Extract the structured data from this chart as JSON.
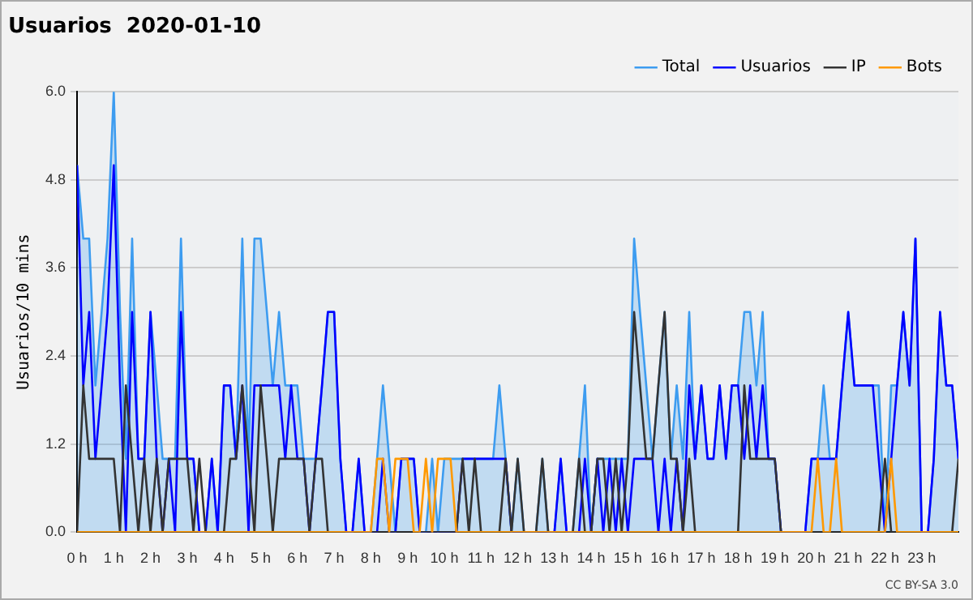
{
  "chart_data": {
    "type": "line",
    "title": "Usuarios  2020-01-10",
    "ylabel": "Usuarios/10 mins",
    "x": [
      0,
      0.17,
      0.33,
      0.5,
      0.67,
      0.83,
      1,
      1.17,
      1.33,
      1.5,
      1.67,
      1.83,
      2,
      2.17,
      2.33,
      2.5,
      2.67,
      2.83,
      3,
      3.17,
      3.33,
      3.5,
      3.67,
      3.83,
      4,
      4.17,
      4.33,
      4.5,
      4.67,
      4.83,
      5,
      5.17,
      5.33,
      5.5,
      5.67,
      5.83,
      6,
      6.17,
      6.33,
      6.5,
      6.67,
      6.83,
      7,
      7.17,
      7.33,
      7.5,
      7.67,
      7.83,
      8,
      8.17,
      8.33,
      8.5,
      8.67,
      8.83,
      9,
      9.17,
      9.33,
      9.5,
      9.67,
      9.83,
      10,
      10.17,
      10.33,
      10.5,
      10.67,
      10.83,
      11,
      11.17,
      11.33,
      11.5,
      11.67,
      11.83,
      12,
      12.17,
      12.33,
      12.5,
      12.67,
      12.83,
      13,
      13.17,
      13.33,
      13.5,
      13.67,
      13.83,
      14,
      14.17,
      14.33,
      14.5,
      14.67,
      14.83,
      15,
      15.17,
      15.33,
      15.5,
      15.67,
      15.83,
      16,
      16.17,
      16.33,
      16.5,
      16.67,
      16.83,
      17,
      17.17,
      17.33,
      17.5,
      17.67,
      17.83,
      18,
      18.17,
      18.33,
      18.5,
      18.67,
      18.83,
      19,
      19.17,
      19.33,
      19.5,
      19.67,
      19.83,
      20,
      20.17,
      20.33,
      20.5,
      20.67,
      20.83,
      21,
      21.17,
      21.33,
      21.5,
      21.67,
      21.83,
      22,
      22.17,
      22.33,
      22.5,
      22.67,
      22.83,
      23,
      23.17,
      23.33,
      23.5,
      23.67,
      23.83,
      24
    ],
    "series": [
      {
        "name": "Total",
        "type": "area",
        "color": "#3d9cf0",
        "values": [
          5,
          4,
          4,
          2,
          3,
          4,
          6,
          3,
          1,
          4,
          1,
          1,
          3,
          2,
          1,
          1,
          1,
          4,
          1,
          1,
          0,
          0,
          1,
          0,
          2,
          2,
          1,
          4,
          1,
          4,
          4,
          3,
          2,
          3,
          2,
          2,
          2,
          1,
          1,
          1,
          2,
          3,
          3,
          1,
          0,
          0,
          1,
          0,
          0,
          1,
          2,
          1,
          0,
          1,
          1,
          1,
          0,
          0,
          1,
          0,
          1,
          1,
          1,
          1,
          1,
          1,
          1,
          1,
          1,
          2,
          1,
          0,
          1,
          0,
          0,
          0,
          1,
          0,
          0,
          1,
          0,
          0,
          1,
          2,
          0,
          1,
          1,
          1,
          1,
          1,
          1,
          4,
          3,
          2,
          1,
          2,
          3,
          1,
          2,
          1,
          3,
          1,
          2,
          1,
          1,
          2,
          1,
          2,
          2,
          3,
          3,
          2,
          3,
          1,
          1,
          0,
          0,
          0,
          0,
          0,
          1,
          1,
          2,
          1,
          1,
          2,
          3,
          2,
          2,
          2,
          2,
          2,
          0,
          2,
          2,
          3,
          2,
          4,
          0,
          0,
          1,
          3,
          2,
          2,
          1
        ]
      },
      {
        "name": "Usuarios",
        "color": "#0000ff",
        "values": [
          5,
          2,
          3,
          1,
          2,
          3,
          5,
          2,
          0,
          3,
          1,
          1,
          3,
          1,
          0,
          1,
          0,
          3,
          1,
          1,
          0,
          0,
          1,
          0,
          2,
          2,
          1,
          2,
          0,
          2,
          2,
          2,
          2,
          2,
          1,
          2,
          1,
          1,
          0,
          1,
          2,
          3,
          3,
          1,
          0,
          0,
          1,
          0,
          0,
          0,
          1,
          0,
          0,
          1,
          1,
          1,
          0,
          0,
          0,
          0,
          0,
          0,
          0,
          1,
          1,
          1,
          1,
          1,
          1,
          1,
          1,
          0,
          0,
          0,
          0,
          0,
          0,
          0,
          0,
          1,
          0,
          0,
          0,
          1,
          0,
          1,
          0,
          1,
          0,
          1,
          0,
          1,
          1,
          1,
          1,
          0,
          1,
          0,
          1,
          0,
          2,
          1,
          2,
          1,
          1,
          2,
          1,
          2,
          2,
          1,
          2,
          1,
          2,
          1,
          1,
          0,
          0,
          0,
          0,
          0,
          1,
          1,
          1,
          1,
          1,
          2,
          3,
          2,
          2,
          2,
          2,
          1,
          0,
          1,
          2,
          3,
          2,
          4,
          0,
          0,
          1,
          3,
          2,
          2,
          1
        ]
      },
      {
        "name": "IP",
        "color": "#333333",
        "values": [
          0,
          2,
          1,
          1,
          1,
          1,
          1,
          0,
          2,
          1,
          0,
          1,
          0,
          1,
          0,
          1,
          1,
          1,
          1,
          0,
          1,
          0,
          0,
          0,
          0,
          1,
          1,
          2,
          1,
          0,
          2,
          1,
          0,
          1,
          1,
          1,
          1,
          1,
          0,
          1,
          1,
          0,
          0,
          0,
          0,
          0,
          0,
          0,
          0,
          0,
          0,
          0,
          0,
          0,
          0,
          0,
          0,
          0,
          0,
          0,
          0,
          0,
          0,
          1,
          0,
          1,
          0,
          0,
          0,
          0,
          1,
          0,
          1,
          0,
          0,
          0,
          1,
          0,
          0,
          0,
          0,
          0,
          1,
          0,
          0,
          1,
          1,
          0,
          1,
          0,
          1,
          3,
          2,
          1,
          1,
          2,
          3,
          1,
          1,
          0,
          1,
          0,
          0,
          0,
          0,
          0,
          0,
          0,
          0,
          2,
          1,
          1,
          1,
          1,
          1,
          0,
          0,
          0,
          0,
          0,
          0,
          0,
          0,
          0,
          0,
          0,
          0,
          0,
          0,
          0,
          0,
          0,
          1,
          0,
          0,
          0,
          0,
          0,
          0,
          0,
          0,
          0,
          0,
          0,
          1
        ]
      },
      {
        "name": "Bots",
        "color": "#ff9900",
        "values": [
          0,
          0,
          0,
          0,
          0,
          0,
          0,
          0,
          0,
          0,
          0,
          0,
          0,
          0,
          0,
          0,
          0,
          0,
          0,
          0,
          0,
          0,
          0,
          0,
          0,
          0,
          0,
          0,
          0,
          0,
          0,
          0,
          0,
          0,
          0,
          0,
          0,
          0,
          0,
          0,
          0,
          0,
          0,
          0,
          0,
          0,
          0,
          0,
          0,
          1,
          1,
          0,
          1,
          1,
          1,
          0,
          0,
          1,
          0,
          1,
          1,
          1,
          0,
          0,
          0,
          0,
          0,
          0,
          0,
          0,
          0,
          0,
          0,
          0,
          0,
          0,
          0,
          0,
          0,
          0,
          0,
          0,
          0,
          0,
          0,
          0,
          0,
          0,
          0,
          0,
          0,
          0,
          0,
          0,
          0,
          0,
          0,
          0,
          0,
          0,
          0,
          0,
          0,
          0,
          0,
          0,
          0,
          0,
          0,
          0,
          0,
          0,
          0,
          0,
          0,
          0,
          0,
          0,
          0,
          0,
          0,
          1,
          0,
          0,
          1,
          0,
          0,
          0,
          0,
          0,
          0,
          0,
          0,
          1,
          0,
          0,
          0,
          0,
          0,
          0,
          0,
          0,
          0,
          0,
          0
        ]
      }
    ],
    "xlim": [
      0,
      24
    ],
    "xticks": [
      {
        "value": 0,
        "label": "0 h"
      },
      {
        "value": 1,
        "label": "1 h"
      },
      {
        "value": 2,
        "label": "2 h"
      },
      {
        "value": 3,
        "label": "3 h"
      },
      {
        "value": 4,
        "label": "4 h"
      },
      {
        "value": 5,
        "label": "5 h"
      },
      {
        "value": 6,
        "label": "6 h"
      },
      {
        "value": 7,
        "label": "7 h"
      },
      {
        "value": 8,
        "label": "8 h"
      },
      {
        "value": 9,
        "label": "9 h"
      },
      {
        "value": 10,
        "label": "10 h"
      },
      {
        "value": 11,
        "label": "11 h"
      },
      {
        "value": 12,
        "label": "12 h"
      },
      {
        "value": 13,
        "label": "13 h"
      },
      {
        "value": 14,
        "label": "14 h"
      },
      {
        "value": 15,
        "label": "15 h"
      },
      {
        "value": 16,
        "label": "16 h"
      },
      {
        "value": 17,
        "label": "17 h"
      },
      {
        "value": 18,
        "label": "18 h"
      },
      {
        "value": 19,
        "label": "19 h"
      },
      {
        "value": 20,
        "label": "20 h"
      },
      {
        "value": 21,
        "label": "21 h"
      },
      {
        "value": 22,
        "label": "22 h"
      },
      {
        "value": 23,
        "label": "23 h"
      }
    ],
    "ylim": [
      0,
      6
    ],
    "yticks": [
      {
        "value": 0,
        "label": "0.0"
      },
      {
        "value": 1.2,
        "label": "1.2"
      },
      {
        "value": 2.4,
        "label": "2.4"
      },
      {
        "value": 3.6,
        "label": "3.6"
      },
      {
        "value": 4.8,
        "label": "4.8"
      },
      {
        "value": 6,
        "label": "6.0"
      }
    ],
    "grid": "y",
    "legend": "top right",
    "marker": "none",
    "line_style": "solid",
    "annotations": [
      "CC BY-SA 3.0"
    ]
  }
}
